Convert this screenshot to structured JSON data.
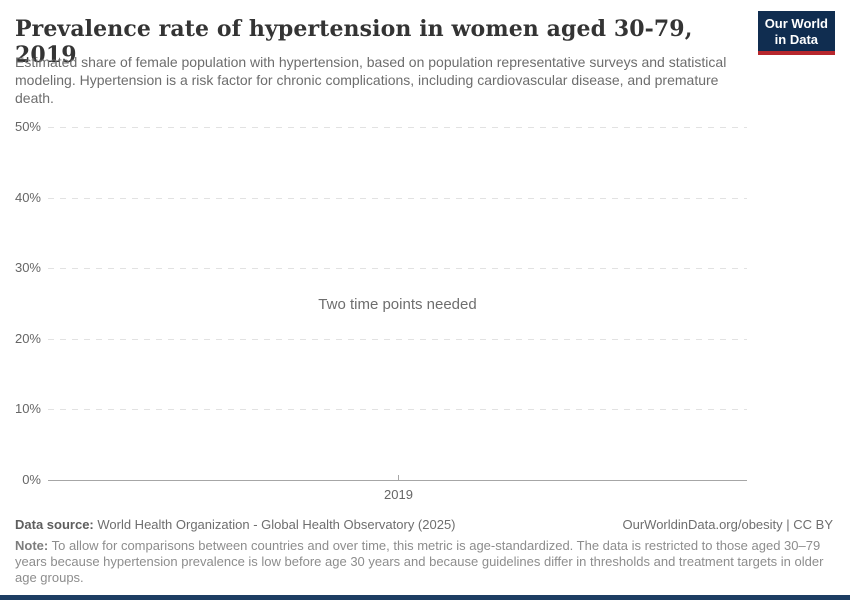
{
  "header": {
    "title": "Prevalence rate of hypertension in women aged 30-79, 2019",
    "subtitle": "Estimated share of female population with hypertension, based on population representative surveys and statistical modeling. Hypertension is a risk factor for chronic complications, including cardiovascular disease, and premature death.",
    "logo": {
      "line1": "Our World",
      "line2": "in Data",
      "bg_color": "#102d50",
      "accent_color": "#b7272d"
    }
  },
  "chart_data": {
    "type": "line",
    "title": "Prevalence rate of hypertension in women aged 30-79, 2019",
    "series": [],
    "empty_message": "Two time points needed",
    "ylabel": "",
    "ylim": [
      0,
      50
    ],
    "yticks": [
      "0%",
      "10%",
      "20%",
      "30%",
      "40%",
      "50%"
    ],
    "xticks": [
      "2019"
    ],
    "grid": "horizontal-dashed",
    "legend": "none",
    "gridline_color": "#e2e2e2",
    "axis_color": "#a6a6a6"
  },
  "footer": {
    "data_source_label": "Data source:",
    "data_source_value": " World Health Organization - Global Health Observatory (2025)",
    "attribution": "OurWorldinData.org/obesity | CC BY",
    "note_label": "Note:",
    "note_value": " To allow for comparisons between countries and over time, this metric is age-standardized. The data is restricted to those aged 30–79 years because hypertension prevalence is low before age 30 years and because guidelines differ in thresholds and treatment targets in older age groups."
  },
  "bottom_bar_color": "#1d3d63"
}
